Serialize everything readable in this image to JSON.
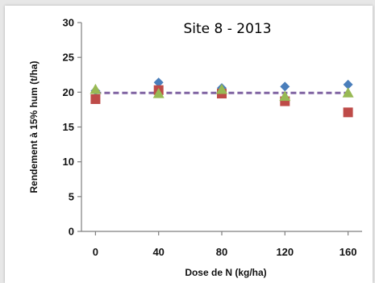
{
  "chart_data": {
    "type": "scatter",
    "title": "Site 8 - 2013",
    "xlabel": "Dose de N (kg/ha)",
    "ylabel": "Rendement à 15% hum (t/ha)",
    "x": [
      0,
      40,
      80,
      120,
      160
    ],
    "xlim": [
      0,
      160
    ],
    "ylim": [
      0,
      30
    ],
    "xticks": [
      "0",
      "40",
      "80",
      "120",
      "160"
    ],
    "yticks": [
      "0",
      "5",
      "10",
      "15",
      "20",
      "25",
      "30"
    ],
    "grid": false,
    "legend": "none",
    "series": [
      {
        "marker": "diamond",
        "color": "#4a7ebb",
        "values": [
          20.2,
          21.4,
          20.6,
          20.8,
          21.1
        ]
      },
      {
        "marker": "square",
        "color": "#be4b48",
        "values": [
          19.0,
          20.3,
          19.8,
          18.7,
          17.1
        ]
      },
      {
        "marker": "triangle",
        "color": "#98b954",
        "values": [
          20.4,
          19.8,
          20.4,
          19.4,
          19.9
        ]
      }
    ],
    "reference_line": {
      "value": 19.9,
      "color": "#8064a2",
      "style": "dashed"
    }
  }
}
